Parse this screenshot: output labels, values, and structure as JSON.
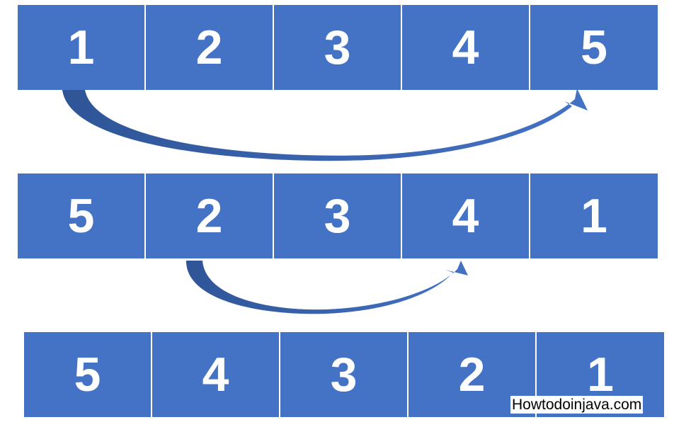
{
  "diagram": {
    "row1": [
      "1",
      "2",
      "3",
      "4",
      "5"
    ],
    "row2": [
      "5",
      "2",
      "3",
      "4",
      "1"
    ],
    "row3": [
      "5",
      "4",
      "3",
      "2",
      "1"
    ],
    "box_color": "#4472C4",
    "arrow_color": "#4472C4"
  },
  "watermark": "Howtodoinjava.com"
}
